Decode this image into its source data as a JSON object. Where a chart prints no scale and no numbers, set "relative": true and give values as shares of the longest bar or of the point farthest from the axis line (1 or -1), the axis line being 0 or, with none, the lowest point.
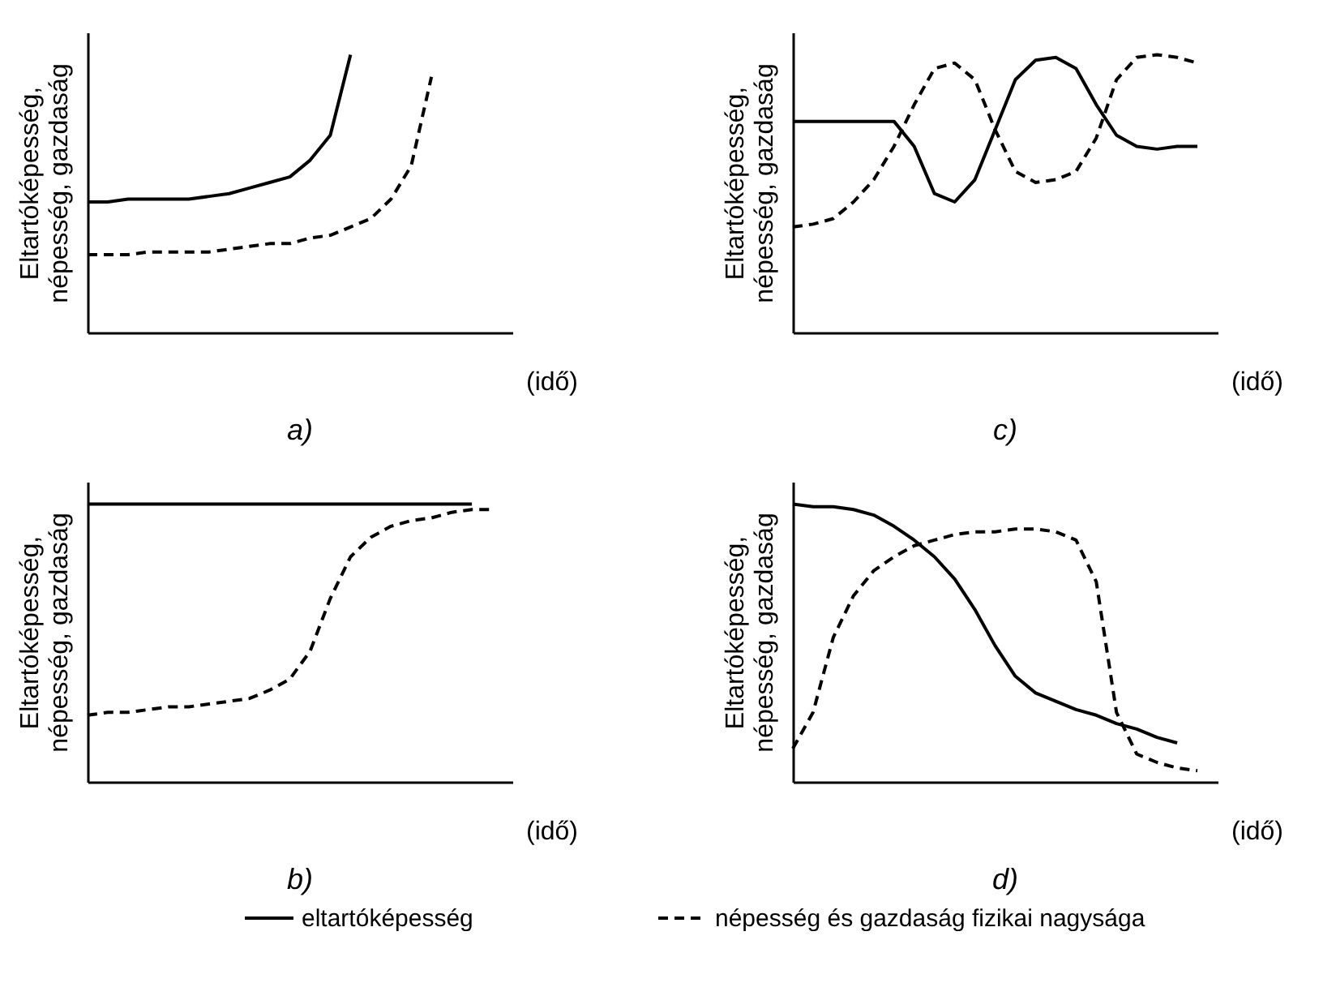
{
  "chart_data": [
    {
      "type": "line",
      "title": "a)",
      "xlabel": "(idő)",
      "ylabel": "Eltartóképesség, népesség, gazdaság",
      "relative": true,
      "legend": "bottom",
      "categories": [
        null,
        null,
        null,
        null,
        null,
        null,
        null,
        null,
        null,
        null,
        null,
        null,
        null,
        null,
        null,
        null,
        null,
        null,
        null,
        null,
        null
      ],
      "series": [
        {
          "name": "eltartóképesség",
          "color": "#000000",
          "line_style": "solid",
          "values": [
            0.47,
            0.47,
            0.48,
            0.48,
            0.48,
            0.48,
            0.49,
            0.5,
            0.52,
            0.54,
            0.56,
            0.62,
            0.71,
            1.0,
            null,
            null,
            null,
            null,
            null,
            null,
            null
          ]
        },
        {
          "name": "népesség és gazdaság fizikai nagysága",
          "color": "#000000",
          "line_style": "dashed",
          "values": [
            0.28,
            0.28,
            0.28,
            0.29,
            0.29,
            0.29,
            0.29,
            0.3,
            0.31,
            0.32,
            0.32,
            0.34,
            0.35,
            0.38,
            0.41,
            0.48,
            0.6,
            0.92,
            null,
            null,
            null
          ]
        }
      ]
    },
    {
      "type": "line",
      "title": "c)",
      "xlabel": "(idő)",
      "ylabel": "Eltartóképesség, népesség, gazdaság",
      "relative": true,
      "categories": [
        null,
        null,
        null,
        null,
        null,
        null,
        null,
        null,
        null,
        null,
        null,
        null,
        null,
        null,
        null,
        null,
        null,
        null,
        null,
        null,
        null
      ],
      "series": [
        {
          "color": "#000000",
          "line_style": "solid",
          "values": [
            0.76,
            0.76,
            0.76,
            0.76,
            0.76,
            0.76,
            0.67,
            0.5,
            0.47,
            0.55,
            0.73,
            0.91,
            0.98,
            0.99,
            0.95,
            0.82,
            0.71,
            0.67,
            0.66,
            0.67,
            0.67
          ]
        },
        {
          "color": "#000000",
          "line_style": "dashed",
          "values": [
            0.38,
            0.39,
            0.41,
            0.47,
            0.55,
            0.67,
            0.82,
            0.95,
            0.97,
            0.91,
            0.73,
            0.58,
            0.54,
            0.55,
            0.58,
            0.7,
            0.91,
            0.99,
            1.0,
            0.99,
            0.97
          ]
        }
      ]
    },
    {
      "type": "line",
      "title": "b)",
      "xlabel": "(idő)",
      "ylabel": "Eltartóképesség, népesség, gazdaság",
      "relative": true,
      "categories": [
        null,
        null,
        null,
        null,
        null,
        null,
        null,
        null,
        null,
        null,
        null,
        null,
        null,
        null,
        null,
        null,
        null,
        null,
        null,
        null,
        null
      ],
      "series": [
        {
          "color": "#000000",
          "line_style": "solid",
          "values": [
            1.0,
            1.0,
            1.0,
            1.0,
            1.0,
            1.0,
            1.0,
            1.0,
            1.0,
            1.0,
            1.0,
            1.0,
            1.0,
            1.0,
            1.0,
            1.0,
            1.0,
            1.0,
            1.0,
            1.0,
            null
          ]
        },
        {
          "color": "#000000",
          "line_style": "dashed",
          "values": [
            0.24,
            0.25,
            0.25,
            0.26,
            0.27,
            0.27,
            0.28,
            0.29,
            0.3,
            0.33,
            0.37,
            0.47,
            0.66,
            0.81,
            0.88,
            0.92,
            0.94,
            0.95,
            0.97,
            0.98,
            0.98
          ]
        }
      ]
    },
    {
      "type": "line",
      "title": "d)",
      "xlabel": "(idő)",
      "ylabel": "Eltartóképesség, népesség, gazdaság",
      "relative": true,
      "categories": [
        null,
        null,
        null,
        null,
        null,
        null,
        null,
        null,
        null,
        null,
        null,
        null,
        null,
        null,
        null,
        null,
        null,
        null,
        null,
        null,
        null
      ],
      "series": [
        {
          "color": "#000000",
          "line_style": "solid",
          "values": [
            1.0,
            0.99,
            0.99,
            0.98,
            0.96,
            0.92,
            0.87,
            0.81,
            0.73,
            0.62,
            0.49,
            0.38,
            0.32,
            0.29,
            0.26,
            0.24,
            0.21,
            0.19,
            0.16,
            0.14,
            null
          ]
        },
        {
          "color": "#000000",
          "line_style": "dashed",
          "values": [
            0.12,
            0.25,
            0.52,
            0.67,
            0.76,
            0.81,
            0.85,
            0.87,
            0.89,
            0.9,
            0.9,
            0.91,
            0.91,
            0.9,
            0.87,
            0.72,
            0.25,
            0.1,
            0.07,
            0.05,
            0.04
          ]
        }
      ]
    }
  ]
}
